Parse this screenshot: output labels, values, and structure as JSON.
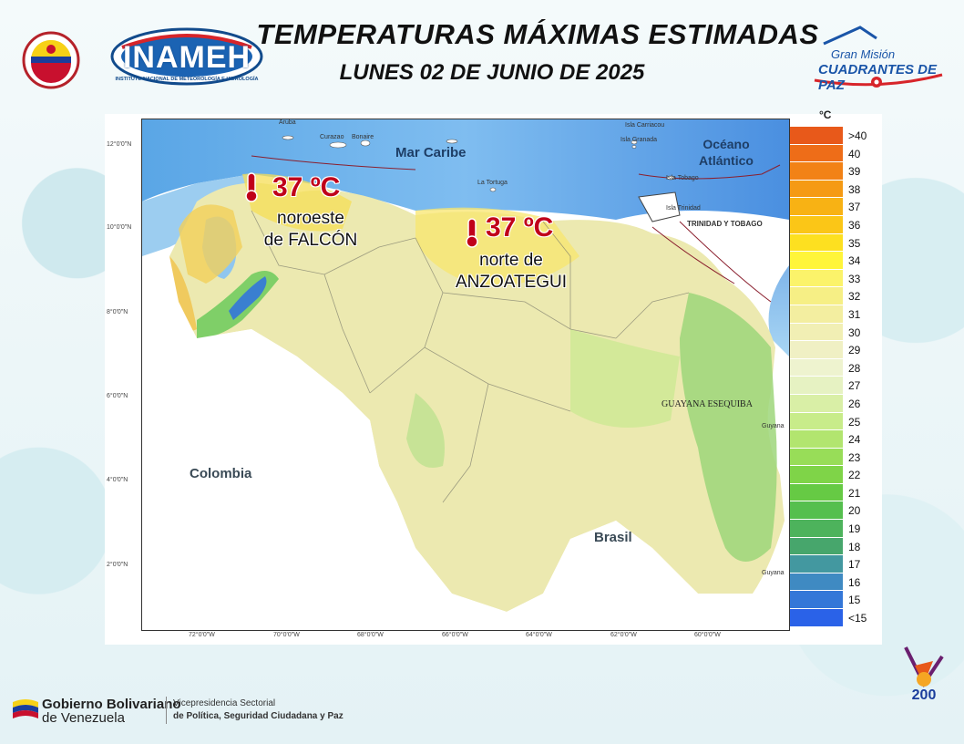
{
  "header": {
    "title": "TEMPERATURAS MÁXIMAS ESTIMADAS",
    "subtitle": "LUNES 02 DE JUNIO DE 2025"
  },
  "logos": {
    "inameh_word": "INAMEH",
    "inameh_tag": "INSTITUTO NACIONAL DE METEOROLOGÍA E HIDROLOGÍA",
    "cuadrantes_line1": "Gran Misión",
    "cuadrantes_line2": "CUADRANTES DE PAZ",
    "bicentenario": "200"
  },
  "map": {
    "sea_labels": {
      "caribe": "Mar Caribe",
      "oceano": "Océano Atlántico"
    },
    "country_labels": {
      "colombia": "Colombia",
      "brasil": "Brasil",
      "guayana_esequiba": "GUAYANA ESEQUIBA",
      "guyana_1": "Guyana",
      "guyana_2": "Guyana"
    },
    "island_labels": {
      "aruba": "Aruba",
      "curazao": "Curazao",
      "bonaire": "Bonaire",
      "carriacou": "Isla Carriacou",
      "granada": "Isla Granada",
      "tobago": "Isla Tobago",
      "trinidad": "Isla Trinidad",
      "tortuga": "La Tortuga",
      "trinidad_tobago": "TRINIDAD Y TOBAGO"
    },
    "latitude_ticks": [
      "12°0'0\"N",
      "10°0'0\"N",
      "8°0'0\"N",
      "6°0'0\"N",
      "4°0'0\"N",
      "2°0'0\"N"
    ],
    "longitude_ticks": [
      "72°0'0\"W",
      "70°0'0\"W",
      "68°0'0\"W",
      "66°0'0\"W",
      "64°0'0\"W",
      "62°0'0\"W",
      "60°0'0\"W"
    ],
    "hotspots": [
      {
        "temp": "37 ºC",
        "desc1": "noroeste",
        "desc2": "de FALCÓN"
      },
      {
        "temp": "37 ºC",
        "desc1": "norte de",
        "desc2": "ANZOATEGUI"
      }
    ]
  },
  "legend": {
    "unit": "°C",
    "items": [
      {
        "label": ">40",
        "color": "#e8591a"
      },
      {
        "label": "40",
        "color": "#ee6d18"
      },
      {
        "label": "39",
        "color": "#f28216"
      },
      {
        "label": "38",
        "color": "#f59a14"
      },
      {
        "label": "37",
        "color": "#f8b214"
      },
      {
        "label": "36",
        "color": "#fbc617"
      },
      {
        "label": "35",
        "color": "#fde020"
      },
      {
        "label": "34",
        "color": "#fff53a"
      },
      {
        "label": "33",
        "color": "#fbf36a"
      },
      {
        "label": "32",
        "color": "#f6ef85"
      },
      {
        "label": "31",
        "color": "#f3eea0"
      },
      {
        "label": "30",
        "color": "#f1efb4"
      },
      {
        "label": "29",
        "color": "#f0f0c4"
      },
      {
        "label": "28",
        "color": "#eef3cf"
      },
      {
        "label": "27",
        "color": "#e6f2c2"
      },
      {
        "label": "26",
        "color": "#d9efa6"
      },
      {
        "label": "25",
        "color": "#c8ec8a"
      },
      {
        "label": "24",
        "color": "#b2e56f"
      },
      {
        "label": "23",
        "color": "#98dd58"
      },
      {
        "label": "22",
        "color": "#7fd448"
      },
      {
        "label": "21",
        "color": "#66ca44"
      },
      {
        "label": "20",
        "color": "#55bf4e"
      },
      {
        "label": "19",
        "color": "#4db35c"
      },
      {
        "label": "18",
        "color": "#47a66c"
      },
      {
        "label": "17",
        "color": "#4398a0"
      },
      {
        "label": "16",
        "color": "#3f8ac2"
      },
      {
        "label": "15",
        "color": "#3477d8"
      },
      {
        "label": "<15",
        "color": "#2a62e8"
      }
    ]
  },
  "footer": {
    "gob_line1": "Gobierno Bolivariano",
    "gob_line2": "de Venezuela",
    "vice_line1": "Vicepresidencia Sectorial",
    "vice_line2": "de Política, Seguridad Ciudadana y Paz"
  }
}
